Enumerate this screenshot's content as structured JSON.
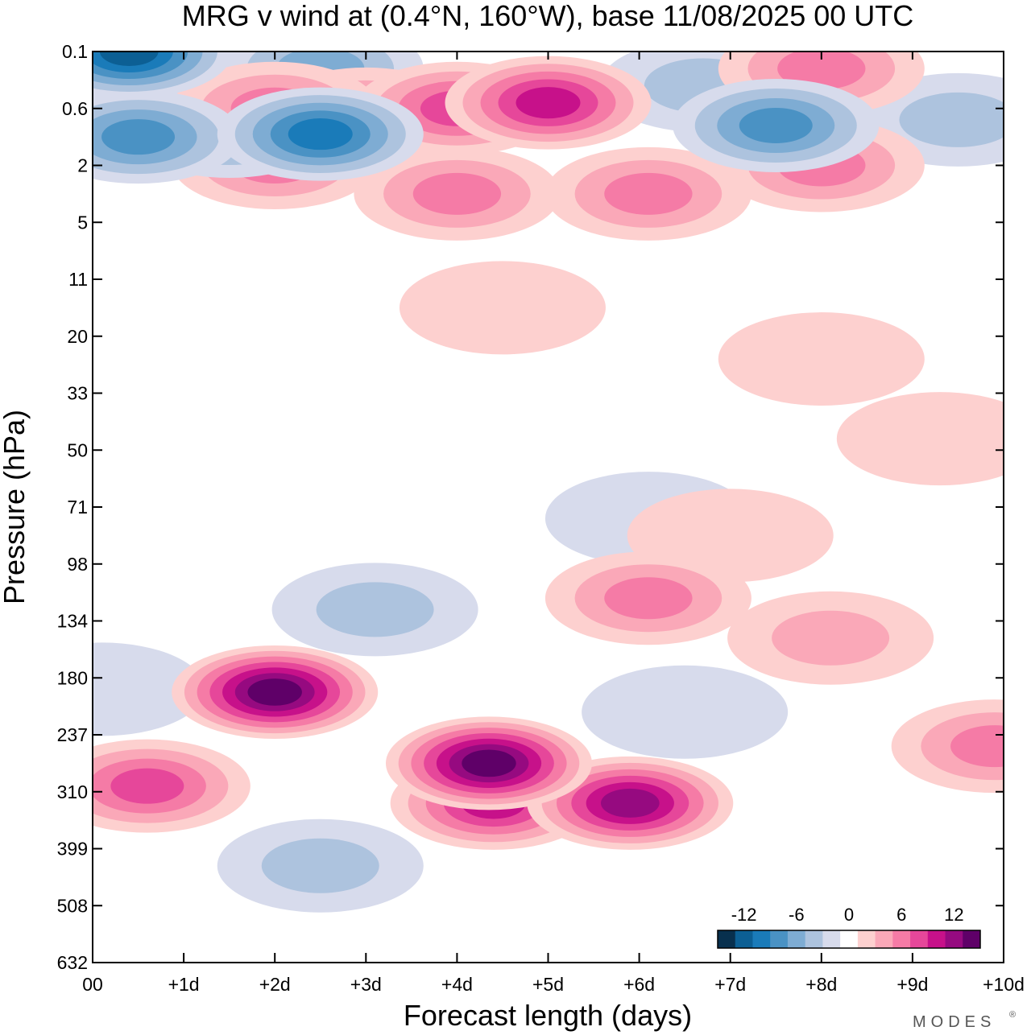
{
  "chart_data": {
    "type": "heatmap",
    "title": "MRG v wind at (0.4°N, 160°W),  base 11/08/2025  00 UTC",
    "xlabel": "Forecast length (days)",
    "ylabel": "Pressure (hPa)",
    "x_ticks": [
      "00",
      "+1d",
      "+2d",
      "+3d",
      "+4d",
      "+5d",
      "+6d",
      "+7d",
      "+8d",
      "+9d",
      "+10d"
    ],
    "y_ticks": [
      "0.1",
      "0.6",
      "2",
      "5",
      "11",
      "20",
      "33",
      "50",
      "71",
      "98",
      "134",
      "180",
      "237",
      "310",
      "399",
      "508",
      "632"
    ],
    "xlim": [
      0,
      10
    ],
    "value_range": [
      -15,
      15
    ],
    "colorbar": {
      "tick_labels": [
        "-12",
        "-6",
        "0",
        "6",
        "12"
      ],
      "tick_values": [
        -12,
        -6,
        0,
        6,
        12
      ],
      "levels": [
        -15,
        -13,
        -11,
        -9,
        -7,
        -5,
        -3,
        -1,
        1,
        3,
        5,
        7,
        9,
        11,
        13,
        15
      ],
      "colors": [
        "#08304e",
        "#0c5f94",
        "#1a7bb9",
        "#4a92c4",
        "#7eacd3",
        "#adc3de",
        "#d7dbec",
        "#ffffff",
        "#fdd0cf",
        "#faa8b8",
        "#f57ba6",
        "#e6479a",
        "#c7118a",
        "#960a80",
        "#5f0068"
      ]
    },
    "features": [
      {
        "day": 2.0,
        "level_index": 11.25,
        "value": 15
      },
      {
        "day": 4.35,
        "level_index": 12.5,
        "value": 15
      },
      {
        "day": 5.9,
        "level_index": 13.2,
        "value": 12
      },
      {
        "day": 4.4,
        "level_index": 13.2,
        "value": 11
      },
      {
        "day": 0.6,
        "level_index": 12.9,
        "value": 9
      },
      {
        "day": 6.1,
        "level_index": 9.6,
        "value": 7
      },
      {
        "day": 8.1,
        "level_index": 10.3,
        "value": 5
      },
      {
        "day": 9.9,
        "level_index": 12.2,
        "value": 6
      },
      {
        "day": 7.0,
        "level_index": 8.5,
        "value": 3
      },
      {
        "day": 3.1,
        "level_index": 9.8,
        "value": -5
      },
      {
        "day": 2.5,
        "level_index": 14.3,
        "value": -4
      },
      {
        "day": 0.1,
        "level_index": 11.2,
        "value": -3
      },
      {
        "day": 6.5,
        "level_index": 11.6,
        "value": -2
      },
      {
        "day": 6.1,
        "level_index": 8.2,
        "value": -2
      },
      {
        "day": 0.4,
        "level_index": 0.0,
        "value": -12
      },
      {
        "day": 0.5,
        "level_index": 1.5,
        "value": -8
      },
      {
        "day": 2.5,
        "level_index": 1.45,
        "value": -10
      },
      {
        "day": 1.5,
        "level_index": 1.4,
        "value": -7
      },
      {
        "day": 2.5,
        "level_index": 0.3,
        "value": -6
      },
      {
        "day": 7.5,
        "level_index": 1.3,
        "value": -8
      },
      {
        "day": 6.7,
        "level_index": 0.6,
        "value": -5
      },
      {
        "day": 9.5,
        "level_index": 1.2,
        "value": -4
      },
      {
        "day": 5.0,
        "level_index": 0.9,
        "value": 10
      },
      {
        "day": 4.0,
        "level_index": 1.0,
        "value": 9
      },
      {
        "day": 4.0,
        "level_index": 2.5,
        "value": 7
      },
      {
        "day": 6.1,
        "level_index": 2.5,
        "value": 6
      },
      {
        "day": 8.0,
        "level_index": 0.3,
        "value": 7
      },
      {
        "day": 8.0,
        "level_index": 2.0,
        "value": 6
      },
      {
        "day": 2.0,
        "level_index": 1.0,
        "value": 7
      },
      {
        "day": 3.0,
        "level_index": 1.1,
        "value": 6
      },
      {
        "day": 2.0,
        "level_index": 1.95,
        "value": 6
      },
      {
        "day": 4.5,
        "level_index": 4.5,
        "value": 3
      },
      {
        "day": 8.0,
        "level_index": 5.4,
        "value": 3
      },
      {
        "day": 9.3,
        "level_index": 6.8,
        "value": 2
      }
    ]
  },
  "branding": {
    "logo_text": "MODES",
    "mark": "®"
  }
}
